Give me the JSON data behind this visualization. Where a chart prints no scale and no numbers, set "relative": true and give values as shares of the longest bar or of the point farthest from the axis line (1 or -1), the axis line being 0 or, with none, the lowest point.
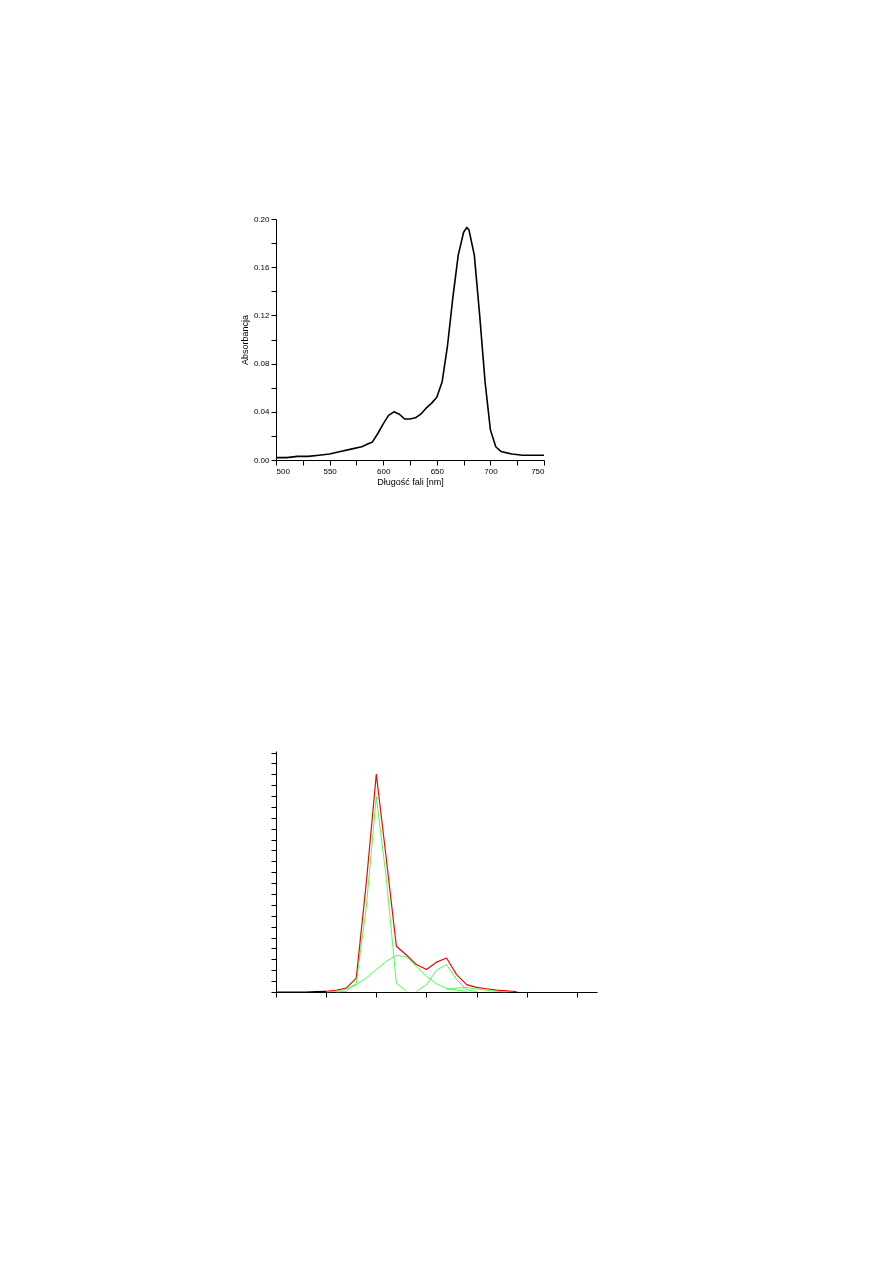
{
  "chart_data": [
    {
      "type": "line",
      "xlabel": "Długość fali [nm]",
      "ylabel": "Absorbancja",
      "x": [
        500,
        510,
        520,
        530,
        540,
        550,
        560,
        570,
        580,
        585,
        590,
        595,
        600,
        605,
        610,
        615,
        620,
        625,
        630,
        635,
        640,
        645,
        650,
        655,
        660,
        665,
        670,
        675,
        678,
        680,
        685,
        690,
        695,
        700,
        705,
        710,
        720,
        730,
        740,
        750
      ],
      "series": [
        {
          "color": "#000000",
          "values": [
            0.002,
            0.002,
            0.003,
            0.003,
            0.004,
            0.005,
            0.007,
            0.009,
            0.011,
            0.013,
            0.015,
            0.022,
            0.03,
            0.037,
            0.04,
            0.038,
            0.034,
            0.034,
            0.035,
            0.038,
            0.043,
            0.047,
            0.052,
            0.065,
            0.095,
            0.135,
            0.17,
            0.189,
            0.193,
            0.191,
            0.17,
            0.12,
            0.065,
            0.025,
            0.011,
            0.007,
            0.005,
            0.004,
            0.004,
            0.004
          ]
        }
      ],
      "xlim": [
        500,
        750
      ],
      "xticks": [
        500,
        {
          "value": 525,
          "label": null
        },
        550,
        {
          "value": 575,
          "label": null
        },
        600,
        {
          "value": 625,
          "label": null
        },
        650,
        {
          "value": 675,
          "label": null
        },
        700,
        {
          "value": 725,
          "label": null
        },
        750
      ],
      "ylim": [
        0,
        0.2
      ],
      "yticks": [
        {
          "value": 0,
          "label": "0.00"
        },
        {
          "value": 0.02,
          "label": null
        },
        {
          "value": 0.04,
          "label": "0.04"
        },
        {
          "value": 0.06,
          "label": null
        },
        {
          "value": 0.08,
          "label": "0.08"
        },
        {
          "value": 0.1,
          "label": null
        },
        {
          "value": 0.12,
          "label": "0.12"
        },
        {
          "value": 0.14,
          "label": null
        },
        {
          "value": 0.16,
          "label": "0.16"
        },
        {
          "value": 0.18,
          "label": null
        },
        {
          "value": 0.2,
          "label": "0.20"
        }
      ],
      "grid": false
    },
    {
      "type": "line",
      "relative": true,
      "tick_labels": false,
      "categories": [
        null,
        null,
        null,
        null,
        null,
        null,
        null,
        null,
        null,
        null,
        null,
        null,
        null,
        null,
        null,
        null,
        null,
        null,
        null,
        null,
        null,
        null,
        null,
        null,
        null,
        null,
        null,
        null,
        null,
        null,
        null,
        null,
        null
      ],
      "series": [
        {
          "color": "#000000",
          "values": [
            0,
            0,
            0,
            0,
            0.002,
            0.003,
            null,
            null,
            null,
            null,
            null,
            null,
            null,
            null,
            null,
            null,
            null,
            null,
            null,
            null,
            null,
            null,
            null,
            null,
            null,
            null,
            null,
            null,
            null,
            null,
            null,
            null,
            null
          ]
        },
        {
          "color": "#ff0000",
          "values": [
            null,
            null,
            null,
            null,
            null,
            0.003,
            0.008,
            0.018,
            0.064,
            0.5,
            1.0,
            0.61,
            0.21,
            0.17,
            0.126,
            0.103,
            0.137,
            0.156,
            0.08,
            0.034,
            0.021,
            0.015,
            0.009,
            0.005,
            0.002,
            null,
            null,
            null,
            null,
            null,
            null,
            null,
            null
          ]
        },
        {
          "color": "#00ff00",
          "values": [
            null,
            null,
            null,
            null,
            null,
            null,
            0,
            0.003,
            0.04,
            0.39,
            0.897,
            0.52,
            0.04,
            0.003,
            null,
            null,
            null,
            null,
            null,
            null,
            null,
            null,
            null,
            null,
            null,
            null,
            null,
            null,
            null,
            null,
            null,
            null,
            null
          ]
        },
        {
          "color": "#00ff00",
          "values": [
            null,
            null,
            null,
            null,
            null,
            0,
            0.003,
            0.014,
            0.034,
            0.064,
            0.103,
            0.141,
            0.169,
            0.161,
            0.118,
            0.072,
            0.037,
            0.017,
            0.008,
            0.003,
            null,
            null,
            null,
            null,
            null,
            null,
            null,
            null,
            null,
            null,
            null,
            null,
            null
          ]
        },
        {
          "color": "#00ff00",
          "values": [
            null,
            null,
            null,
            null,
            null,
            null,
            null,
            null,
            null,
            null,
            null,
            null,
            null,
            null,
            0.003,
            0.034,
            0.1,
            0.126,
            0.057,
            0.011,
            0.002,
            null,
            null,
            null,
            null,
            null,
            null,
            null,
            null,
            null,
            null,
            null,
            null
          ]
        },
        {
          "color": "#00ff00",
          "values": [
            null,
            null,
            null,
            null,
            null,
            null,
            null,
            null,
            null,
            null,
            null,
            null,
            null,
            null,
            null,
            null,
            null,
            0.011,
            0.018,
            0.02,
            0.014,
            0.008,
            0.003,
            0,
            null,
            null,
            null,
            null,
            null,
            null,
            null,
            null,
            null
          ]
        }
      ]
    }
  ]
}
